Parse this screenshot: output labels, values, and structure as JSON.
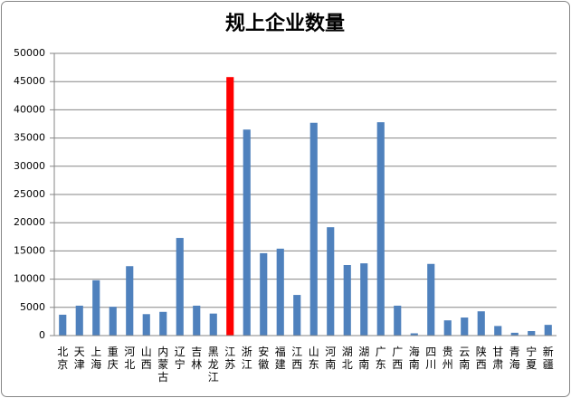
{
  "chart_data": {
    "type": "bar",
    "title": "规上企业数量",
    "categories": [
      "北京",
      "天津",
      "上海",
      "重庆",
      "河北",
      "山西",
      "内蒙古",
      "辽宁",
      "吉林",
      "黑龙江",
      "江苏",
      "浙江",
      "安徽",
      "福建",
      "江西",
      "山东",
      "河南",
      "湖北",
      "湖南",
      "广东",
      "广西",
      "海南",
      "四川",
      "贵州",
      "云南",
      "陕西",
      "甘肃",
      "青海",
      "宁夏",
      "新疆"
    ],
    "values": [
      3700,
      5300,
      9800,
      5100,
      12300,
      3800,
      4200,
      17300,
      5300,
      3900,
      45800,
      36500,
      14600,
      15400,
      7200,
      37700,
      19200,
      12500,
      12800,
      37800,
      5300,
      400,
      12700,
      2700,
      3200,
      4300,
      1700,
      500,
      800,
      1900
    ],
    "colors": [
      "#4f81bd",
      "#4f81bd",
      "#4f81bd",
      "#4f81bd",
      "#4f81bd",
      "#4f81bd",
      "#4f81bd",
      "#4f81bd",
      "#4f81bd",
      "#4f81bd",
      "#ff0000",
      "#4f81bd",
      "#4f81bd",
      "#4f81bd",
      "#4f81bd",
      "#4f81bd",
      "#4f81bd",
      "#4f81bd",
      "#4f81bd",
      "#4f81bd",
      "#4f81bd",
      "#4f81bd",
      "#4f81bd",
      "#4f81bd",
      "#4f81bd",
      "#4f81bd",
      "#4f81bd",
      "#4f81bd",
      "#4f81bd",
      "#4f81bd"
    ],
    "ylim": [
      0,
      50000
    ],
    "yticks": [
      0,
      5000,
      10000,
      15000,
      20000,
      25000,
      30000,
      35000,
      40000,
      45000,
      50000
    ],
    "grid": true
  }
}
